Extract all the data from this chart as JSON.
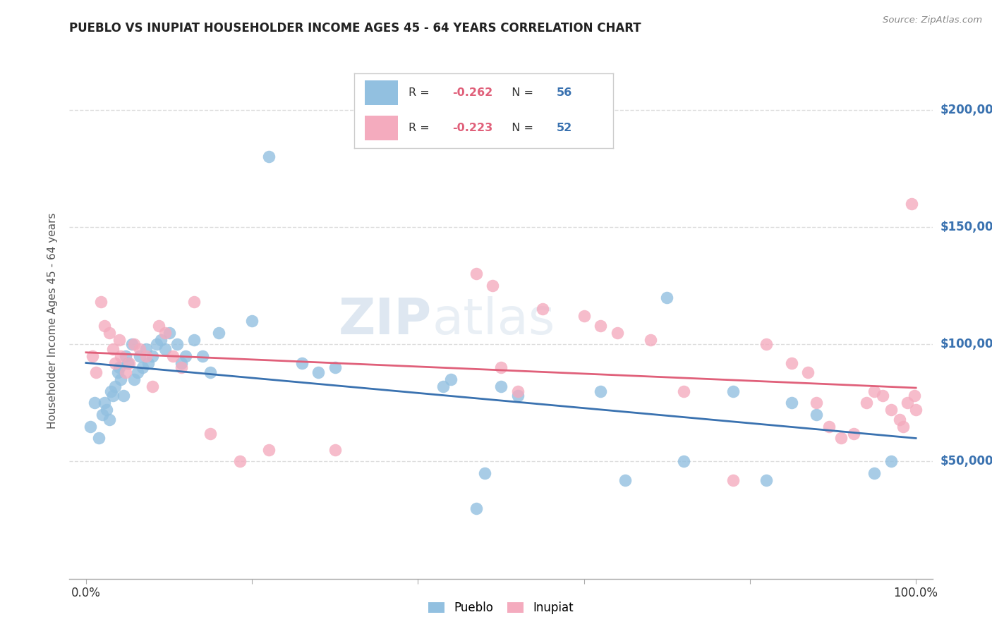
{
  "title": "PUEBLO VS INUPIAT HOUSEHOLDER INCOME AGES 45 - 64 YEARS CORRELATION CHART",
  "source": "Source: ZipAtlas.com",
  "ylabel": "Householder Income Ages 45 - 64 years",
  "pueblo_color": "#92C0E0",
  "inupiat_color": "#F4ABBE",
  "pueblo_line_color": "#3A72B0",
  "inupiat_line_color": "#E0607A",
  "right_axis_color": "#3A72B0",
  "pueblo_label": "Pueblo",
  "inupiat_label": "Inupiat",
  "pueblo_R": "-0.262",
  "pueblo_N": "56",
  "inupiat_R": "-0.223",
  "inupiat_N": "52",
  "watermark": "ZIPatlas",
  "background_color": "#ffffff",
  "grid_color": "#dddddd",
  "ylim": [
    0,
    220000
  ],
  "xlim": [
    -0.02,
    1.02
  ],
  "yticks": [
    50000,
    100000,
    150000,
    200000
  ],
  "ytick_labels": [
    "$50,000",
    "$100,000",
    "$150,000",
    "$200,000"
  ],
  "pueblo_x": [
    0.005,
    0.01,
    0.015,
    0.02,
    0.022,
    0.025,
    0.028,
    0.03,
    0.032,
    0.035,
    0.038,
    0.04,
    0.042,
    0.045,
    0.048,
    0.05,
    0.055,
    0.058,
    0.062,
    0.065,
    0.068,
    0.072,
    0.075,
    0.08,
    0.085,
    0.09,
    0.095,
    0.1,
    0.11,
    0.115,
    0.12,
    0.13,
    0.14,
    0.15,
    0.16,
    0.2,
    0.22,
    0.26,
    0.28,
    0.3,
    0.43,
    0.44,
    0.47,
    0.48,
    0.5,
    0.52,
    0.62,
    0.65,
    0.7,
    0.72,
    0.78,
    0.82,
    0.85,
    0.88,
    0.95,
    0.97
  ],
  "pueblo_y": [
    65000,
    75000,
    60000,
    70000,
    75000,
    72000,
    68000,
    80000,
    78000,
    82000,
    88000,
    90000,
    85000,
    78000,
    95000,
    92000,
    100000,
    85000,
    88000,
    95000,
    90000,
    98000,
    92000,
    95000,
    100000,
    102000,
    98000,
    105000,
    100000,
    92000,
    95000,
    102000,
    95000,
    88000,
    105000,
    110000,
    180000,
    92000,
    88000,
    90000,
    82000,
    85000,
    30000,
    45000,
    82000,
    78000,
    80000,
    42000,
    120000,
    50000,
    80000,
    42000,
    75000,
    70000,
    45000,
    50000
  ],
  "inupiat_x": [
    0.008,
    0.012,
    0.018,
    0.022,
    0.028,
    0.032,
    0.035,
    0.04,
    0.042,
    0.048,
    0.052,
    0.058,
    0.065,
    0.072,
    0.08,
    0.088,
    0.095,
    0.105,
    0.115,
    0.13,
    0.15,
    0.185,
    0.22,
    0.3,
    0.47,
    0.49,
    0.5,
    0.52,
    0.55,
    0.6,
    0.62,
    0.64,
    0.68,
    0.72,
    0.78,
    0.82,
    0.85,
    0.87,
    0.88,
    0.895,
    0.91,
    0.925,
    0.94,
    0.95,
    0.96,
    0.97,
    0.98,
    0.985,
    0.99,
    0.995,
    0.998,
    1.0
  ],
  "inupiat_y": [
    95000,
    88000,
    118000,
    108000,
    105000,
    98000,
    92000,
    102000,
    95000,
    88000,
    92000,
    100000,
    98000,
    95000,
    82000,
    108000,
    105000,
    95000,
    90000,
    118000,
    62000,
    50000,
    55000,
    55000,
    130000,
    125000,
    90000,
    80000,
    115000,
    112000,
    108000,
    105000,
    102000,
    80000,
    42000,
    100000,
    92000,
    88000,
    75000,
    65000,
    60000,
    62000,
    75000,
    80000,
    78000,
    72000,
    68000,
    65000,
    75000,
    160000,
    78000,
    72000
  ]
}
